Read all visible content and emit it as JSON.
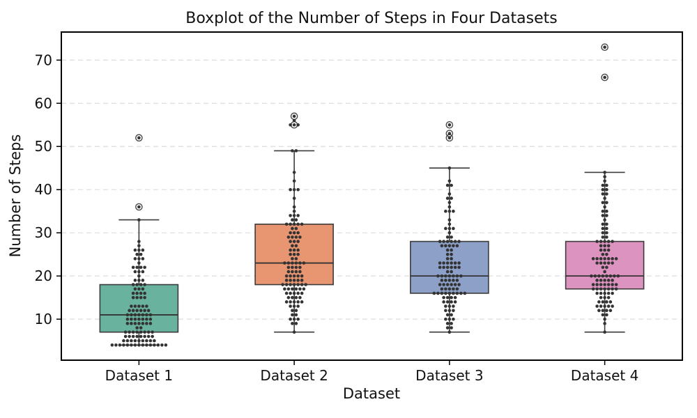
{
  "chart_data": {
    "type": "boxplot",
    "title": "Boxplot of the Number of Steps in Four Datasets",
    "xlabel": "Dataset",
    "ylabel": "Number of Steps",
    "categories": [
      "Dataset 1",
      "Dataset 2",
      "Dataset 3",
      "Dataset 4"
    ],
    "yticks": [
      10,
      20,
      30,
      40,
      50,
      60,
      70
    ],
    "ylim": [
      0.5,
      76.5
    ],
    "grid": "horizontal-dashed",
    "legend": "none",
    "colors": {
      "frame": "#000000",
      "grid": "#dcdcdc",
      "box_edge": "#3b3b3b",
      "median": "#333333",
      "dot": "#333333",
      "outlier_ring": "#4a4a4a",
      "text": "#111111"
    },
    "series": [
      {
        "name": "Dataset 1",
        "color": "#68b29e",
        "whisker_low": 4,
        "q1": 7,
        "median": 11,
        "q3": 18,
        "whisker_high": 33,
        "outliers": [
          36,
          52
        ],
        "points": [
          [
            4,
            15
          ],
          [
            5,
            9
          ],
          [
            6,
            8
          ],
          [
            7,
            8
          ],
          [
            8,
            2
          ],
          [
            9,
            7
          ],
          [
            10,
            7
          ],
          [
            11,
            7
          ],
          [
            12,
            6
          ],
          [
            13,
            5
          ],
          [
            15,
            4
          ],
          [
            16,
            4
          ],
          [
            17,
            3
          ],
          [
            18,
            4
          ],
          [
            19,
            3
          ],
          [
            20,
            1
          ],
          [
            21,
            3
          ],
          [
            22,
            4
          ],
          [
            23,
            1
          ],
          [
            24,
            3
          ],
          [
            25,
            2
          ],
          [
            26,
            3
          ],
          [
            27,
            1
          ],
          [
            28,
            1
          ],
          [
            33,
            1
          ],
          [
            36,
            1
          ],
          [
            52,
            1
          ]
        ]
      },
      {
        "name": "Dataset 2",
        "color": "#e89572",
        "whisker_low": 7,
        "q1": 18,
        "median": 23,
        "q3": 32,
        "whisker_high": 49,
        "outliers": [
          55,
          57
        ],
        "points": [
          [
            7,
            1
          ],
          [
            9,
            2
          ],
          [
            10,
            3
          ],
          [
            11,
            2
          ],
          [
            12,
            2
          ],
          [
            13,
            3
          ],
          [
            14,
            5
          ],
          [
            15,
            4
          ],
          [
            16,
            5
          ],
          [
            17,
            6
          ],
          [
            18,
            7
          ],
          [
            19,
            5
          ],
          [
            20,
            5
          ],
          [
            21,
            4
          ],
          [
            22,
            4
          ],
          [
            23,
            6
          ],
          [
            24,
            2
          ],
          [
            25,
            3
          ],
          [
            26,
            3
          ],
          [
            27,
            2
          ],
          [
            28,
            3
          ],
          [
            29,
            4
          ],
          [
            30,
            3
          ],
          [
            31,
            2
          ],
          [
            32,
            5
          ],
          [
            33,
            2
          ],
          [
            34,
            3
          ],
          [
            35,
            1
          ],
          [
            36,
            1
          ],
          [
            38,
            1
          ],
          [
            40,
            3
          ],
          [
            42,
            1
          ],
          [
            44,
            1
          ],
          [
            49,
            2
          ],
          [
            55,
            3
          ],
          [
            56,
            1
          ],
          [
            57,
            1
          ]
        ]
      },
      {
        "name": "Dataset 3",
        "color": "#8ca0c8",
        "whisker_low": 7,
        "q1": 16,
        "median": 20,
        "q3": 28,
        "whisker_high": 45,
        "outliers": [
          52,
          53,
          55
        ],
        "points": [
          [
            7,
            1
          ],
          [
            8,
            2
          ],
          [
            9,
            2
          ],
          [
            10,
            3
          ],
          [
            11,
            2
          ],
          [
            12,
            3
          ],
          [
            13,
            3
          ],
          [
            14,
            4
          ],
          [
            15,
            4
          ],
          [
            16,
            9
          ],
          [
            17,
            5
          ],
          [
            18,
            6
          ],
          [
            19,
            5
          ],
          [
            20,
            7
          ],
          [
            21,
            2
          ],
          [
            22,
            6
          ],
          [
            23,
            6
          ],
          [
            24,
            2
          ],
          [
            25,
            2
          ],
          [
            26,
            2
          ],
          [
            27,
            5
          ],
          [
            28,
            6
          ],
          [
            29,
            2
          ],
          [
            30,
            1
          ],
          [
            31,
            3
          ],
          [
            32,
            1
          ],
          [
            33,
            1
          ],
          [
            35,
            3
          ],
          [
            36,
            1
          ],
          [
            37,
            1
          ],
          [
            38,
            2
          ],
          [
            39,
            1
          ],
          [
            41,
            2
          ],
          [
            42,
            1
          ],
          [
            45,
            1
          ],
          [
            52,
            1
          ],
          [
            53,
            1
          ],
          [
            55,
            1
          ]
        ]
      },
      {
        "name": "Dataset 4",
        "color": "#dd93bf",
        "whisker_low": 7,
        "q1": 17,
        "median": 20,
        "q3": 28,
        "whisker_high": 44,
        "outliers": [
          66,
          73
        ],
        "points": [
          [
            7,
            1
          ],
          [
            9,
            1
          ],
          [
            10,
            1
          ],
          [
            11,
            2
          ],
          [
            12,
            4
          ],
          [
            13,
            5
          ],
          [
            14,
            4
          ],
          [
            15,
            3
          ],
          [
            16,
            5
          ],
          [
            17,
            7
          ],
          [
            18,
            7
          ],
          [
            19,
            5
          ],
          [
            20,
            8
          ],
          [
            21,
            1
          ],
          [
            22,
            2
          ],
          [
            23,
            5
          ],
          [
            24,
            7
          ],
          [
            25,
            2
          ],
          [
            26,
            3
          ],
          [
            27,
            3
          ],
          [
            28,
            5
          ],
          [
            29,
            2
          ],
          [
            30,
            2
          ],
          [
            31,
            2
          ],
          [
            32,
            2
          ],
          [
            33,
            1
          ],
          [
            34,
            2
          ],
          [
            35,
            2
          ],
          [
            36,
            1
          ],
          [
            37,
            2
          ],
          [
            38,
            1
          ],
          [
            39,
            2
          ],
          [
            40,
            2
          ],
          [
            41,
            2
          ],
          [
            42,
            1
          ],
          [
            43,
            1
          ],
          [
            44,
            1
          ],
          [
            66,
            1
          ],
          [
            73,
            1
          ]
        ]
      }
    ]
  }
}
